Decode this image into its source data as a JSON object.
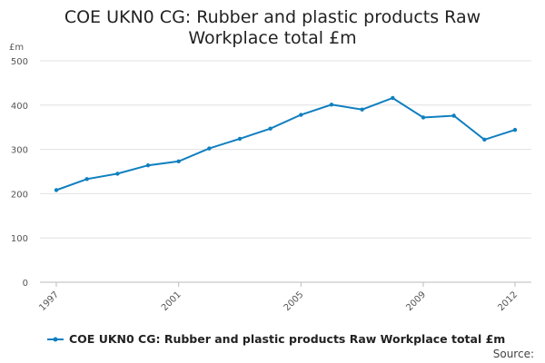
{
  "chart_data": {
    "type": "line",
    "title": "COE UKN0 CG: Rubber and plastic products Raw Workplace total £m",
    "unit_label": "£m",
    "x": [
      1997,
      1998,
      1999,
      2000,
      2001,
      2002,
      2003,
      2004,
      2005,
      2006,
      2007,
      2008,
      2009,
      2010,
      2011,
      2012
    ],
    "xtick_labels": [
      "1997",
      "2001",
      "2005",
      "2009",
      "2012"
    ],
    "ylim": [
      0,
      500
    ],
    "yticks": [
      0,
      100,
      200,
      300,
      400,
      500
    ],
    "grid": true,
    "series": [
      {
        "name": "COE UKN0 CG: Rubber and plastic products Raw Workplace total £m",
        "color": "#0f7fbf",
        "values": [
          208,
          233,
          245,
          264,
          273,
          302,
          324,
          347,
          378,
          401,
          390,
          416,
          372,
          376,
          322,
          344
        ]
      }
    ],
    "legend_position": "bottom",
    "source_label": "Source:"
  }
}
